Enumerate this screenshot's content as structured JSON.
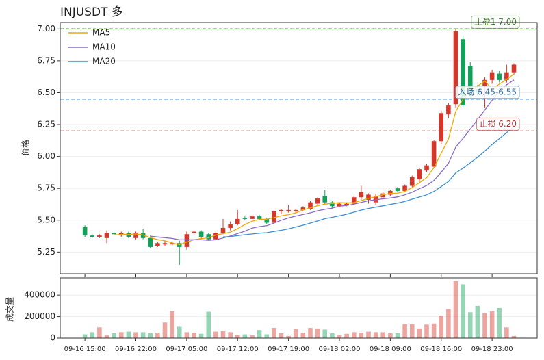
{
  "chart_data": [
    {
      "type": "candlestick",
      "title": "INJUSDT 多",
      "ylabel": "价格",
      "ylim": [
        5.08,
        7.05
      ],
      "yticks": [
        5.25,
        {
          "value": 5.5,
          "label": "5.50"
        },
        5.75,
        {
          "value": 6,
          "label": "6.00"
        },
        6.25,
        {
          "value": 6.5,
          "label": "6.50"
        },
        6.75,
        {
          "value": 7,
          "label": "7.00"
        }
      ],
      "grid": true,
      "legend": "upper left",
      "up_color": "#d5382b",
      "down_color": "#13a05a",
      "open": [
        5.45,
        5.38,
        5.37,
        5.36,
        5.4,
        5.38,
        5.4,
        5.36,
        5.4,
        5.36,
        5.3,
        5.31,
        5.31,
        5.32,
        5.29,
        5.4,
        5.41,
        5.39,
        5.35,
        5.4,
        5.44,
        5.47,
        5.52,
        5.51,
        5.53,
        5.51,
        5.48,
        5.57,
        5.57,
        5.57,
        5.58,
        5.59,
        5.63,
        5.69,
        5.64,
        5.61,
        5.62,
        5.63,
        5.68,
        5.66,
        5.64,
        5.68,
        5.7,
        5.75,
        5.73,
        5.77,
        5.82,
        5.89,
        5.92,
        6.12,
        6.33,
        6.41,
        6.92,
        6.71,
        6.53,
        6.55,
        6.6,
        6.65,
        6.6,
        6.66
      ],
      "high": [
        5.46,
        5.39,
        5.39,
        5.42,
        5.41,
        5.41,
        5.41,
        5.41,
        5.43,
        5.38,
        5.33,
        5.34,
        5.33,
        5.34,
        5.41,
        5.42,
        5.42,
        5.4,
        5.41,
        5.51,
        5.49,
        5.58,
        5.53,
        5.54,
        5.54,
        5.52,
        5.58,
        5.59,
        5.62,
        5.59,
        5.61,
        5.65,
        5.68,
        5.74,
        5.65,
        5.64,
        5.64,
        5.69,
        5.77,
        5.71,
        5.71,
        5.72,
        5.74,
        5.76,
        5.78,
        5.85,
        5.91,
        5.94,
        6.13,
        6.36,
        6.42,
        7.0,
        6.95,
        6.74,
        6.56,
        6.62,
        6.68,
        6.67,
        6.72,
        6.73
      ],
      "low": [
        5.37,
        5.36,
        5.36,
        5.32,
        5.38,
        5.37,
        5.36,
        5.35,
        5.35,
        5.28,
        5.29,
        5.3,
        5.3,
        5.15,
        5.27,
        5.38,
        5.36,
        5.34,
        5.34,
        5.39,
        5.42,
        5.46,
        5.5,
        5.5,
        5.5,
        5.47,
        5.47,
        5.55,
        5.56,
        5.55,
        5.57,
        5.58,
        5.61,
        5.62,
        5.59,
        5.6,
        5.61,
        5.62,
        5.66,
        5.63,
        5.62,
        5.67,
        5.69,
        5.72,
        5.72,
        5.76,
        5.8,
        5.88,
        5.91,
        6.1,
        6.3,
        6.38,
        6.38,
        6.46,
        6.48,
        6.38,
        6.57,
        6.58,
        6.58,
        6.64
      ],
      "close": [
        5.38,
        5.37,
        5.38,
        5.4,
        5.39,
        5.4,
        5.37,
        5.4,
        5.36,
        5.29,
        5.32,
        5.32,
        5.32,
        5.29,
        5.39,
        5.41,
        5.37,
        5.35,
        5.4,
        5.44,
        5.47,
        5.51,
        5.51,
        5.53,
        5.51,
        5.48,
        5.57,
        5.58,
        5.58,
        5.58,
        5.6,
        5.64,
        5.67,
        5.64,
        5.61,
        5.63,
        5.63,
        5.68,
        5.72,
        5.7,
        5.69,
        5.71,
        5.73,
        5.73,
        5.77,
        5.84,
        5.9,
        5.93,
        6.12,
        6.34,
        6.4,
        6.98,
        6.4,
        6.48,
        6.5,
        6.6,
        6.66,
        6.6,
        6.66,
        6.72
      ],
      "series": [
        {
          "name": "MA5",
          "color": "#efa800",
          "values": [
            null,
            null,
            null,
            null,
            5.384,
            5.388,
            5.388,
            5.392,
            5.384,
            5.364,
            5.348,
            5.338,
            5.322,
            5.308,
            5.328,
            5.346,
            5.356,
            5.362,
            5.384,
            5.394,
            5.406,
            5.434,
            5.466,
            5.492,
            5.506,
            5.508,
            5.52,
            5.534,
            5.544,
            5.558,
            5.582,
            5.596,
            5.614,
            5.626,
            5.632,
            5.638,
            5.636,
            5.638,
            5.654,
            5.672,
            5.684,
            5.7,
            5.71,
            5.712,
            5.726,
            5.756,
            5.794,
            5.834,
            5.912,
            6.026,
            6.138,
            6.354,
            6.448,
            6.52,
            6.552,
            6.592,
            6.528,
            6.568,
            6.604,
            6.648
          ]
        },
        {
          "name": "MA10",
          "color": "#8a6cc4",
          "values": [
            null,
            null,
            null,
            null,
            null,
            null,
            null,
            null,
            null,
            5.374,
            5.368,
            5.363,
            5.357,
            5.346,
            5.346,
            5.347,
            5.347,
            5.342,
            5.346,
            5.361,
            5.376,
            5.395,
            5.414,
            5.438,
            5.45,
            5.457,
            5.477,
            5.5,
            5.518,
            5.532,
            5.545,
            5.558,
            5.574,
            5.585,
            5.595,
            5.61,
            5.616,
            5.626,
            5.64,
            5.652,
            5.661,
            5.668,
            5.674,
            5.683,
            5.699,
            5.72,
            5.747,
            5.772,
            5.812,
            5.876,
            5.947,
            6.074,
            6.141,
            6.216,
            6.289,
            6.365,
            6.441,
            6.508,
            6.562,
            6.6
          ]
        },
        {
          "name": "MA20",
          "color": "#3d8fd1",
          "values": [
            null,
            null,
            null,
            null,
            null,
            null,
            null,
            null,
            null,
            null,
            null,
            null,
            null,
            null,
            null,
            null,
            null,
            null,
            null,
            5.368,
            5.372,
            5.379,
            5.386,
            5.392,
            5.398,
            5.402,
            5.412,
            5.421,
            5.432,
            5.447,
            5.461,
            5.477,
            5.494,
            5.512,
            5.523,
            5.534,
            5.547,
            5.563,
            5.579,
            5.592,
            5.603,
            5.613,
            5.624,
            5.634,
            5.647,
            5.665,
            5.682,
            5.699,
            5.726,
            5.764,
            5.804,
            5.871,
            5.908,
            5.95,
            5.994,
            6.043,
            6.094,
            6.14,
            6.187,
            6.238
          ]
        }
      ],
      "hlines": [
        {
          "value": 7,
          "label": "止盈1 7.00",
          "color": "#3a7d22"
        },
        {
          "value": 6.45,
          "label": "入场 6.45-6.55",
          "color": "#2a6aa6"
        },
        {
          "value": 6.2,
          "label": "止损 6.20",
          "color": "#a83232"
        }
      ]
    },
    {
      "type": "bar",
      "ylabel": "成交量",
      "categories": [
        "09-16 15:00",
        null,
        null,
        null,
        null,
        null,
        null,
        "09-16 22:00",
        null,
        null,
        null,
        null,
        null,
        null,
        "09-17 05:00",
        null,
        null,
        null,
        null,
        null,
        null,
        "09-17 12:00",
        null,
        null,
        null,
        null,
        null,
        null,
        "09-17 19:00",
        null,
        null,
        null,
        null,
        null,
        null,
        "09-18 02:00",
        null,
        null,
        null,
        null,
        null,
        null,
        "09-18 09:00",
        null,
        null,
        null,
        null,
        null,
        null,
        "09-18 16:00",
        null,
        null,
        null,
        null,
        null,
        null,
        "09-18 23:00",
        null,
        null,
        null
      ],
      "values": [
        35000,
        55000,
        100000,
        25000,
        45000,
        55000,
        60000,
        55000,
        55000,
        45000,
        50000,
        145000,
        250000,
        105000,
        55000,
        50000,
        40000,
        245000,
        60000,
        65000,
        55000,
        30000,
        35000,
        25000,
        75000,
        35000,
        95000,
        45000,
        20000,
        85000,
        50000,
        95000,
        90000,
        80000,
        45000,
        25000,
        40000,
        55000,
        50000,
        60000,
        55000,
        55000,
        45000,
        45000,
        130000,
        130000,
        90000,
        125000,
        135000,
        210000,
        270000,
        530000,
        500000,
        240000,
        300000,
        230000,
        250000,
        280000,
        100000,
        20000
      ],
      "ylim": [
        0,
        560000
      ],
      "yticks": [
        0,
        200000,
        400000
      ],
      "grid": true
    }
  ]
}
